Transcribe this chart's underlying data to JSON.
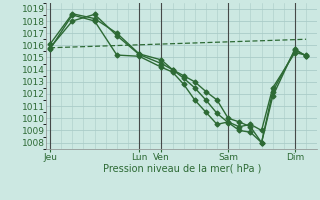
{
  "bg_color": "#cce8e2",
  "grid_color": "#b8ddd8",
  "line_color": "#2d6a35",
  "xlabel": "Pression niveau de la mer( hPa )",
  "ylim": [
    1007.5,
    1019.5
  ],
  "yticks": [
    1008,
    1009,
    1010,
    1011,
    1012,
    1013,
    1014,
    1015,
    1016,
    1017,
    1018,
    1019
  ],
  "xtick_labels": [
    "Jeu",
    "Lun",
    "Ven",
    "Sam",
    "Dim"
  ],
  "xtick_positions": [
    0,
    48,
    60,
    96,
    132
  ],
  "vline_positions": [
    0,
    48,
    60,
    96,
    132
  ],
  "xlim": [
    -2,
    144
  ],
  "line1_x": [
    0,
    12,
    24,
    36,
    48,
    60,
    66,
    72,
    78,
    84,
    90,
    96,
    102,
    108,
    114,
    120,
    132,
    138
  ],
  "line1_y": [
    1015.8,
    1018.0,
    1018.55,
    1016.8,
    1015.25,
    1014.5,
    1014.0,
    1013.5,
    1013.0,
    1012.2,
    1011.5,
    1010.0,
    1009.7,
    1009.3,
    1008.0,
    1011.8,
    1015.7,
    1015.1
  ],
  "line2_x": [
    0,
    12,
    24,
    36,
    48,
    60,
    66,
    72,
    78,
    84,
    90,
    96,
    102,
    108,
    114,
    120,
    132,
    138
  ],
  "line2_y": [
    1016.1,
    1018.6,
    1018.2,
    1017.0,
    1015.3,
    1014.8,
    1014.0,
    1013.3,
    1012.5,
    1011.5,
    1010.4,
    1009.65,
    1009.0,
    1008.85,
    1008.0,
    1012.2,
    1015.6,
    1015.15
  ],
  "line3_x": [
    0,
    12,
    24,
    36,
    48,
    60,
    66,
    72,
    78,
    84,
    90,
    96,
    102,
    108,
    114,
    120,
    132,
    138
  ],
  "line3_y": [
    1015.7,
    1018.5,
    1018.0,
    1015.2,
    1015.1,
    1014.2,
    1013.8,
    1012.8,
    1011.5,
    1010.5,
    1009.5,
    1009.7,
    1009.3,
    1009.5,
    1009.0,
    1012.5,
    1015.4,
    1015.2
  ],
  "line4_x": [
    0,
    138
  ],
  "line4_y": [
    1015.8,
    1016.5
  ]
}
